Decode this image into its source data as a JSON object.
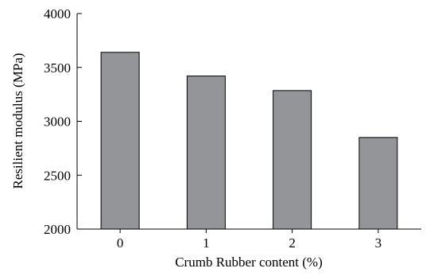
{
  "chart_data": {
    "type": "bar",
    "categories": [
      "0",
      "1",
      "2",
      "3"
    ],
    "values": [
      3640,
      3420,
      3285,
      2850
    ],
    "title": "",
    "xlabel": "Crumb Rubber content (%)",
    "ylabel": "Resilient modulus (MPa)",
    "ylim": [
      2000,
      4000
    ],
    "yticks": [
      "2000",
      "2500",
      "3000",
      "3500",
      "4000"
    ],
    "grid": false,
    "legend": "none",
    "bar_color": "#939598"
  }
}
